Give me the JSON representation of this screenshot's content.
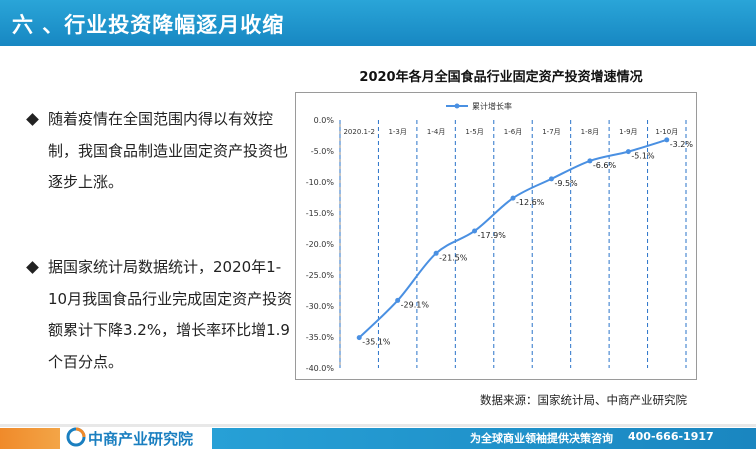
{
  "header": {
    "title": "六 、行业投资降幅逐月收缩"
  },
  "bullets": [
    {
      "text": "随着疫情在全国范围内得以有效控制，我国食品制造业固定资产投资也逐步上涨。"
    },
    {
      "text": "据国家统计局数据统计，2020年1-10月我国食品行业完成固定资产投资额累计下降3.2%，增长率环比增1.9个百分点。"
    }
  ],
  "chart_data": {
    "type": "line",
    "title": "2020年各月全国食品行业固定资产投资增速情况",
    "categories": [
      "2020.1-2",
      "1-3月",
      "1-4月",
      "1-5月",
      "1-6月",
      "1-7月",
      "1-8月",
      "1-9月",
      "1-10月"
    ],
    "series": [
      {
        "name": "累计增长率",
        "values": [
          -35.1,
          -29.1,
          -21.5,
          -17.9,
          -12.6,
          -9.5,
          -6.6,
          -5.1,
          -3.2
        ],
        "labels": [
          "-35.1%",
          "-29.1%",
          "-21.5%",
          "-17.9%",
          "-12.6%",
          "-9.5%",
          "-6.6%",
          "-5.1%",
          "-3.2%"
        ]
      }
    ],
    "ylim": [
      -40,
      0
    ],
    "yticks": [
      "0.0%",
      "-5.0%",
      "-10.0%",
      "-15.0%",
      "-20.0%",
      "-25.0%",
      "-30.0%",
      "-35.0%",
      "-40.0%"
    ],
    "ytick_values": [
      0,
      -5,
      -10,
      -15,
      -20,
      -25,
      -30,
      -35,
      -40
    ],
    "legend_position": "top-left",
    "grid": "vertical dashed",
    "line_color": "#4a90e2"
  },
  "source": "数据来源：国家统计局、中商产业研究院",
  "footer": {
    "logo": "中商产业研究院",
    "slogan": "为全球商业领袖提供决策咨询",
    "phone": "400-666-1917"
  }
}
